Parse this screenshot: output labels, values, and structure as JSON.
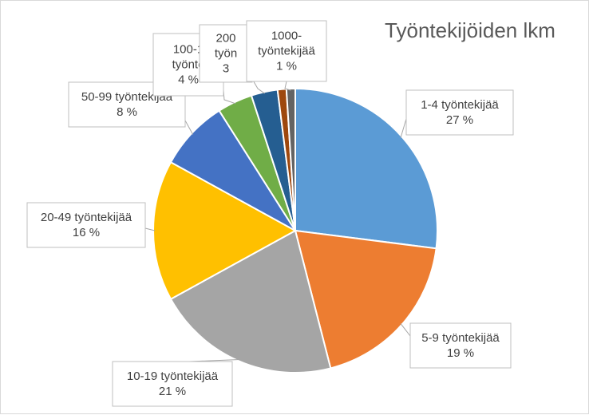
{
  "chart_data": {
    "type": "pie",
    "title": "Työntekijöiden lkm",
    "slices": [
      {
        "name": "1-4 työntekijää",
        "value": 27,
        "label": "27 %",
        "color": "#5B9BD5"
      },
      {
        "name": "5-9 työntekijää",
        "value": 19,
        "label": "19 %",
        "color": "#ED7D31"
      },
      {
        "name": "10-19 työntekijää",
        "value": 21,
        "label": "21 %",
        "color": "#A5A5A5"
      },
      {
        "name": "20-49 työntekijää",
        "value": 16,
        "label": "16 %",
        "color": "#FFC000"
      },
      {
        "name": "50-99 työntekijää",
        "value": 8,
        "label": "8 %",
        "color": "#4472C4"
      },
      {
        "name": "100-1",
        "value": 4,
        "label": "4 %",
        "color": "#70AD47",
        "name_line2": "työnte"
      },
      {
        "name": "200",
        "value": 3,
        "label": "3",
        "color": "#255E91",
        "name_line2": "työn"
      },
      {
        "name": "",
        "value": 1,
        "label": "",
        "color": "#9E480E"
      },
      {
        "name": "1000-",
        "value": 1,
        "label": "1 %",
        "color": "#636363",
        "name_line2": "työntekijää"
      }
    ]
  }
}
